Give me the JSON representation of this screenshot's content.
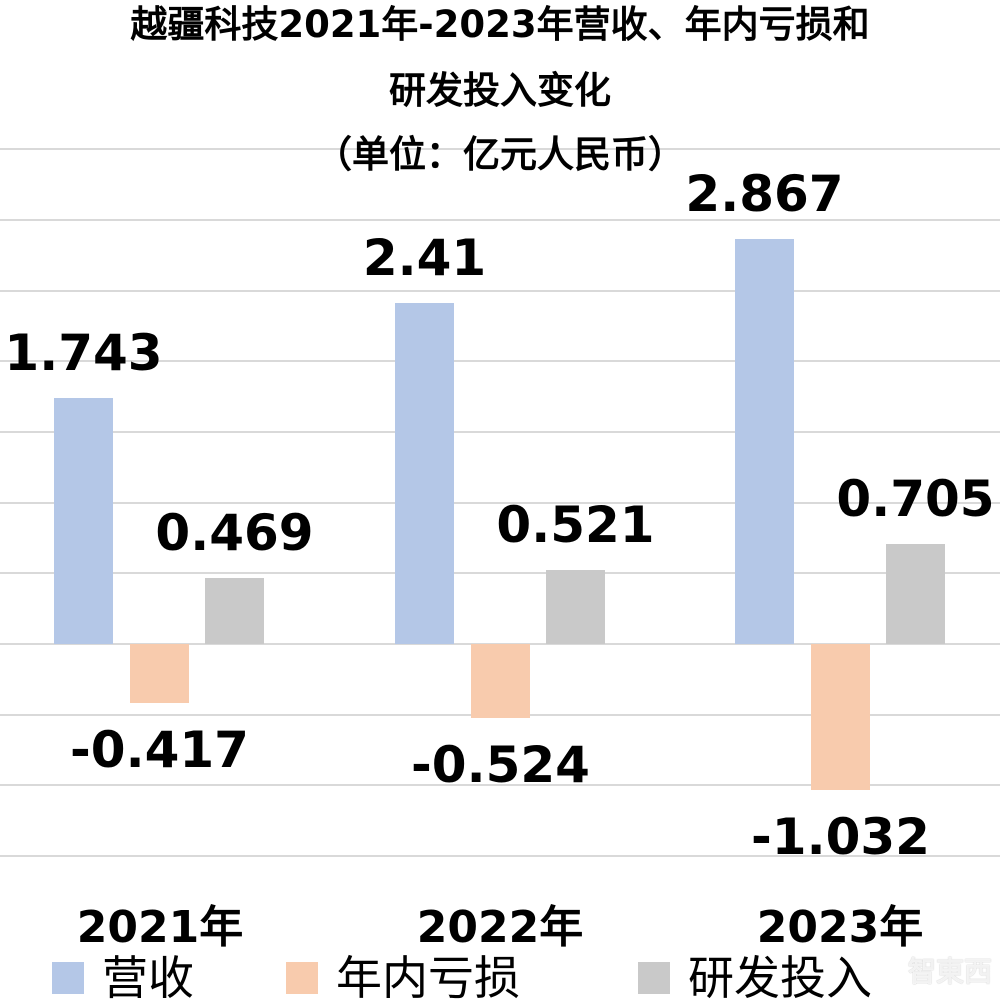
{
  "title": {
    "line1": "越疆科技2021年-2023年营收、年内亏损和",
    "line2": "研发投入变化",
    "line3": "（单位：亿元人民币）"
  },
  "colors": {
    "revenue": "#B4C7E7",
    "loss": "#F8CBAD",
    "rd": "#C9C9C9",
    "grid": "#D9D9D9"
  },
  "watermark": "智東西",
  "chart_data": {
    "type": "bar",
    "title": "越疆科技2021年-2023年营收、年内亏损和研发投入变化（单位：亿元人民币）",
    "categories": [
      "2021年",
      "2022年",
      "2023年"
    ],
    "series": [
      {
        "name": "营收",
        "values": [
          1.743,
          2.41,
          2.867
        ]
      },
      {
        "name": "年内亏损",
        "values": [
          -0.417,
          -0.524,
          -1.032
        ]
      },
      {
        "name": "研发投入",
        "values": [
          0.469,
          0.521,
          0.705
        ]
      }
    ],
    "data_labels": {
      "营收": [
        "1.743",
        "2.41",
        "2.867"
      ],
      "年内亏损": [
        "-0.417",
        "-0.524",
        "-1.032"
      ],
      "研发投入": [
        "0.469",
        "0.521",
        "0.705"
      ]
    },
    "xlabel": "",
    "ylabel": "",
    "ylim": [
      -1.5,
      3.5
    ],
    "grid": true,
    "legend_position": "bottom"
  },
  "legend": [
    {
      "label": "营收"
    },
    {
      "label": "年内亏损"
    },
    {
      "label": "研发投入"
    }
  ]
}
